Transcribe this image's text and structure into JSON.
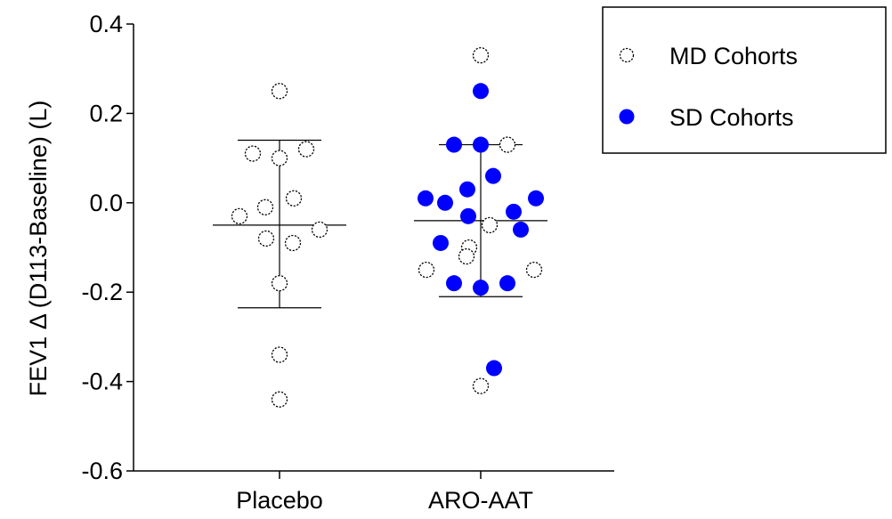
{
  "chart_data": {
    "type": "scatter",
    "ylabel": "FEV1 Δ (D113-Baseline) (L)",
    "xlabel": "",
    "title": "",
    "ylim": [
      -0.6,
      0.4
    ],
    "yticks": [
      -0.6,
      -0.4,
      -0.2,
      0.0,
      0.2,
      0.4
    ],
    "ytick_labels": [
      "-0.6",
      "-0.4",
      "-0.2",
      "0.0",
      "0.2",
      "0.4"
    ],
    "categories": [
      "Placebo",
      "ARO-AAT"
    ],
    "grid": false,
    "legend_position": "top-right",
    "series": [
      {
        "name": "MD Cohorts",
        "marker": "open-circle",
        "color": "#000000",
        "points": [
          {
            "category": "Placebo",
            "y": 0.25
          },
          {
            "category": "Placebo",
            "y": 0.11
          },
          {
            "category": "Placebo",
            "y": 0.1
          },
          {
            "category": "Placebo",
            "y": 0.12
          },
          {
            "category": "Placebo",
            "y": 0.01
          },
          {
            "category": "Placebo",
            "y": -0.01
          },
          {
            "category": "Placebo",
            "y": -0.03
          },
          {
            "category": "Placebo",
            "y": -0.06
          },
          {
            "category": "Placebo",
            "y": -0.08
          },
          {
            "category": "Placebo",
            "y": -0.09
          },
          {
            "category": "Placebo",
            "y": -0.18
          },
          {
            "category": "Placebo",
            "y": -0.34
          },
          {
            "category": "Placebo",
            "y": -0.44
          },
          {
            "category": "ARO-AAT",
            "y": 0.33
          },
          {
            "category": "ARO-AAT",
            "y": 0.13
          },
          {
            "category": "ARO-AAT",
            "y": -0.05
          },
          {
            "category": "ARO-AAT",
            "y": -0.1
          },
          {
            "category": "ARO-AAT",
            "y": -0.12
          },
          {
            "category": "ARO-AAT",
            "y": -0.15
          },
          {
            "category": "ARO-AAT",
            "y": -0.15
          },
          {
            "category": "ARO-AAT",
            "y": -0.41
          }
        ]
      },
      {
        "name": "SD Cohorts",
        "marker": "filled-circle",
        "color": "#0000ff",
        "points": [
          {
            "category": "ARO-AAT",
            "y": 0.25
          },
          {
            "category": "ARO-AAT",
            "y": 0.13
          },
          {
            "category": "ARO-AAT",
            "y": 0.13
          },
          {
            "category": "ARO-AAT",
            "y": 0.06
          },
          {
            "category": "ARO-AAT",
            "y": 0.03
          },
          {
            "category": "ARO-AAT",
            "y": 0.01
          },
          {
            "category": "ARO-AAT",
            "y": 0.0
          },
          {
            "category": "ARO-AAT",
            "y": 0.01
          },
          {
            "category": "ARO-AAT",
            "y": -0.02
          },
          {
            "category": "ARO-AAT",
            "y": -0.03
          },
          {
            "category": "ARO-AAT",
            "y": -0.06
          },
          {
            "category": "ARO-AAT",
            "y": -0.09
          },
          {
            "category": "ARO-AAT",
            "y": -0.18
          },
          {
            "category": "ARO-AAT",
            "y": -0.19
          },
          {
            "category": "ARO-AAT",
            "y": -0.18
          },
          {
            "category": "ARO-AAT",
            "y": -0.37
          }
        ]
      }
    ],
    "summary_bars": [
      {
        "category": "Placebo",
        "mean": -0.05,
        "upper": 0.14,
        "lower": -0.235
      },
      {
        "category": "ARO-AAT",
        "mean": -0.04,
        "upper": 0.13,
        "lower": -0.21
      }
    ],
    "legend": [
      {
        "label": "MD Cohorts",
        "marker": "open-circle"
      },
      {
        "label": "SD Cohorts",
        "marker": "filled-circle"
      }
    ]
  }
}
